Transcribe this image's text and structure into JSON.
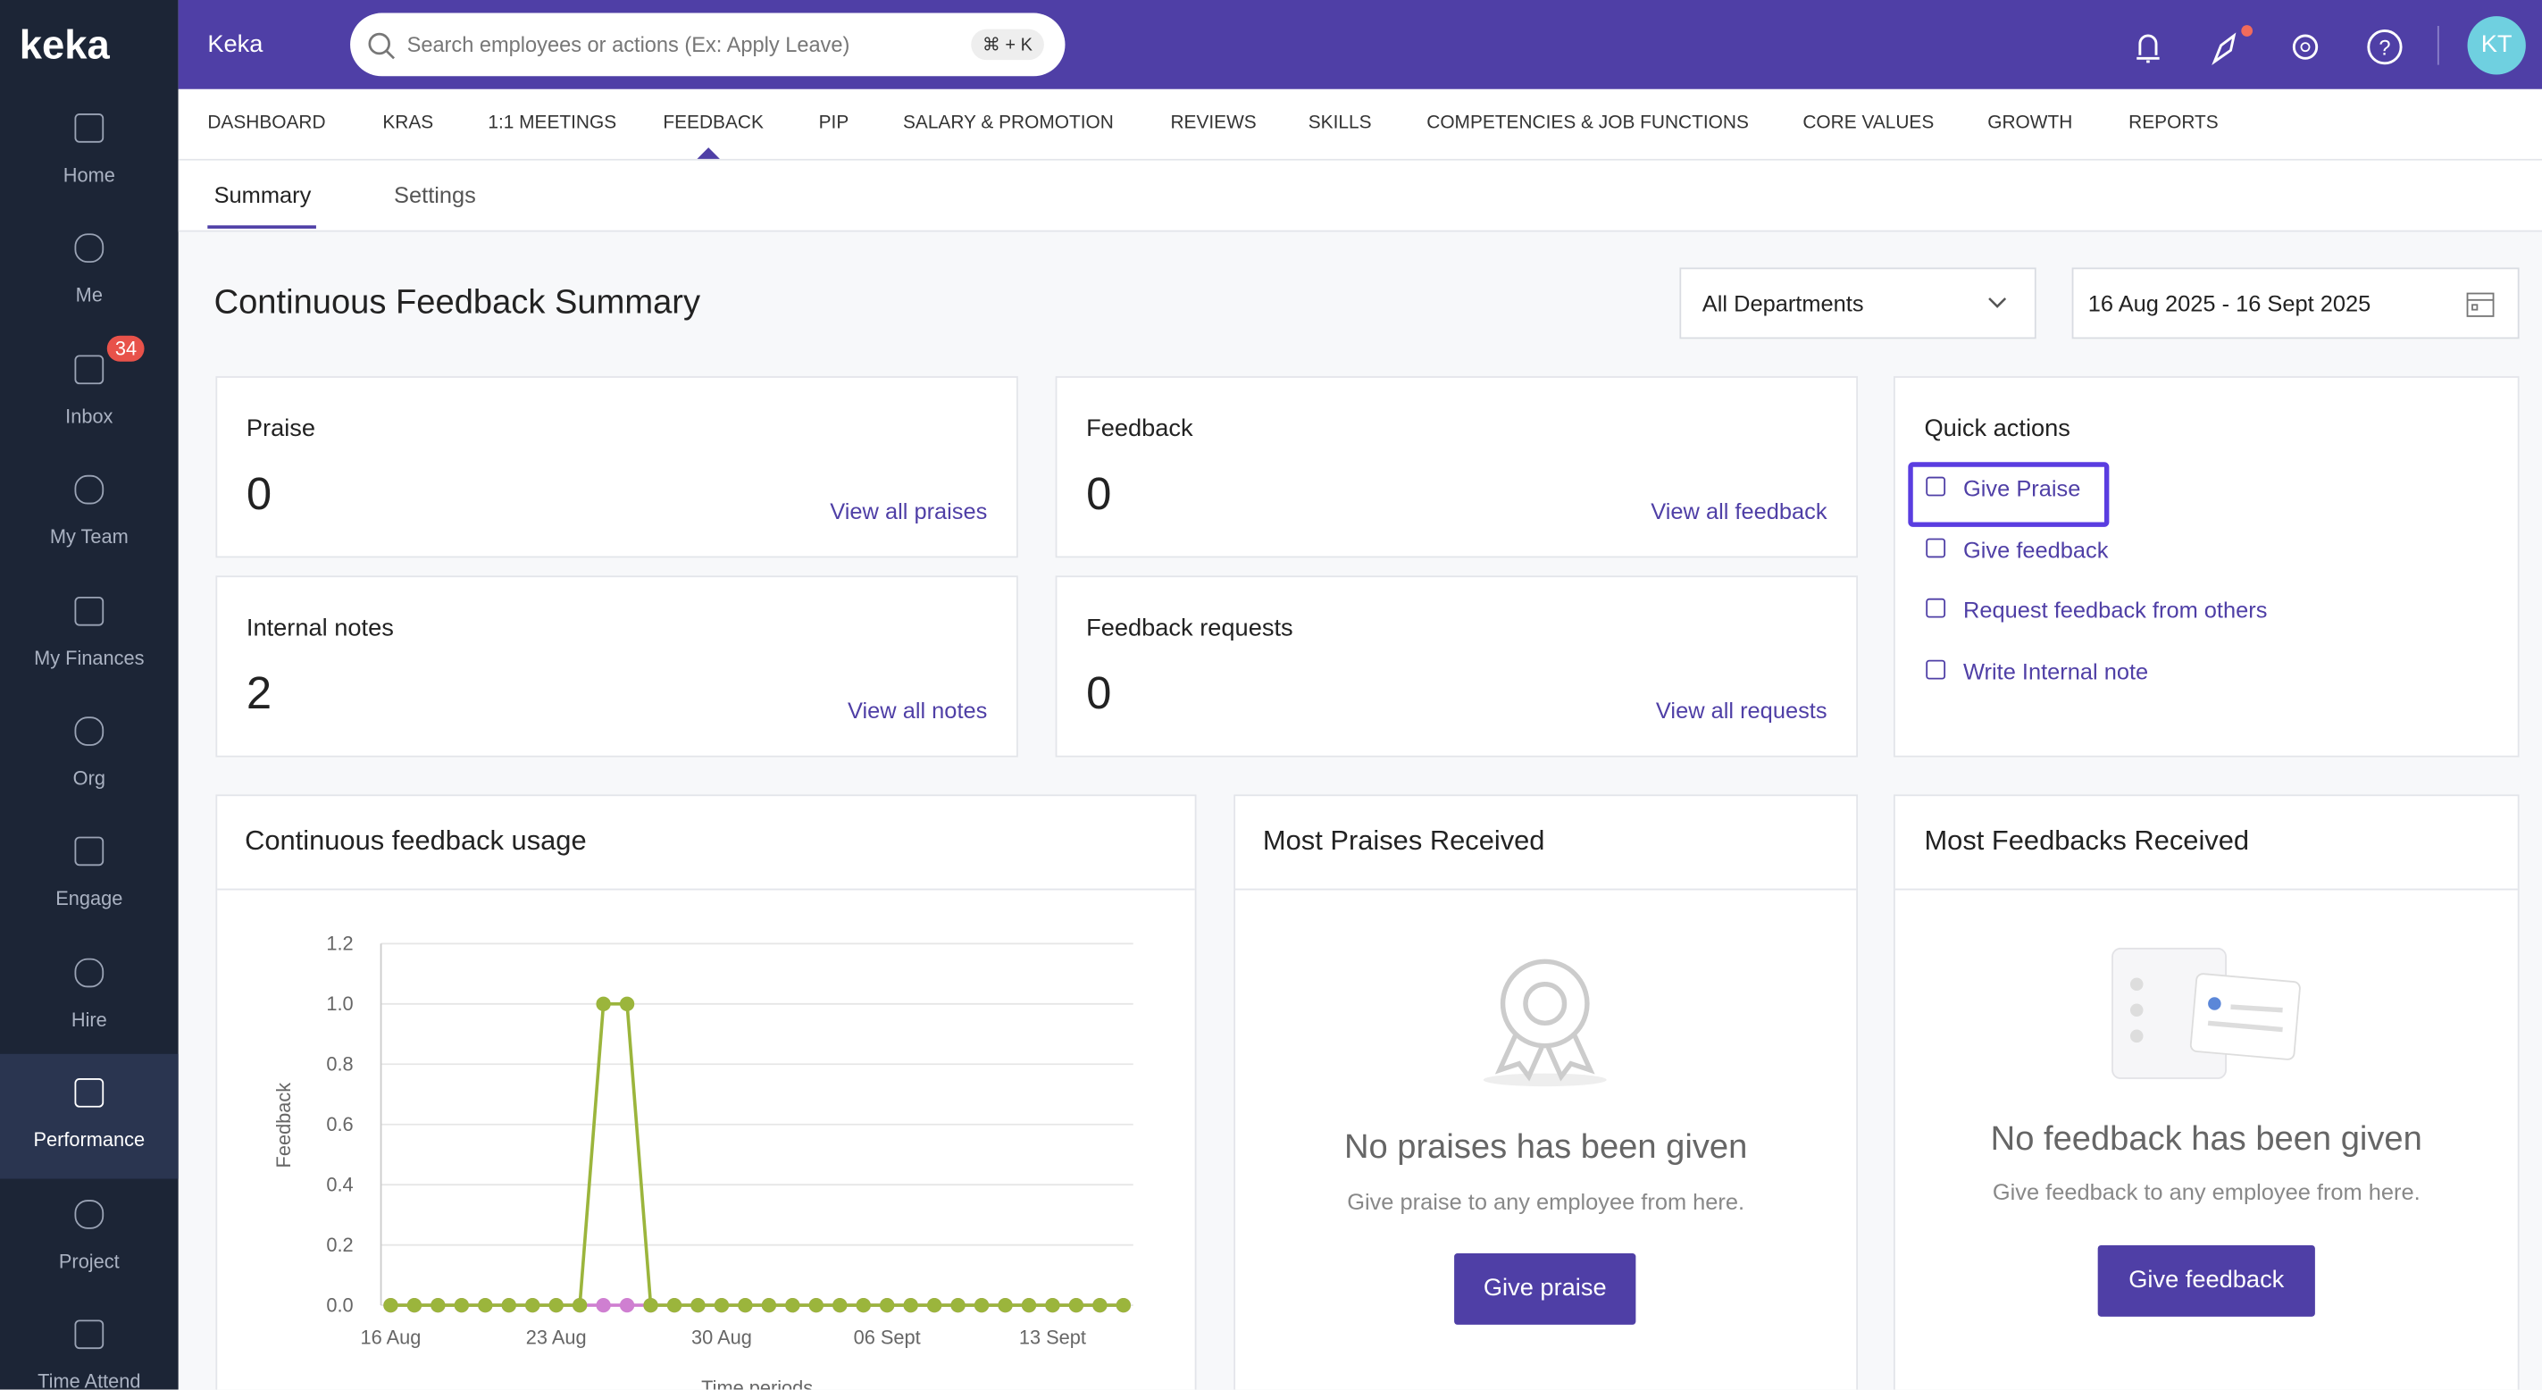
{
  "brand": "keka",
  "header": {
    "org": "Keka",
    "search_placeholder": "Search employees or actions (Ex: Apply Leave)",
    "shortcut": "⌘ + K",
    "avatar": "KT"
  },
  "sidebar": {
    "items": [
      "Home",
      "Me",
      "Inbox",
      "My Team",
      "My Finances",
      "Org",
      "Engage",
      "Hire",
      "Performance",
      "Project",
      "Time Attend"
    ],
    "inbox_badge": 34
  },
  "top_nav": [
    "DASHBOARD",
    "KRAS",
    "1:1 MEETINGS",
    "FEEDBACK",
    "PIP",
    "SALARY & PROMOTION",
    "REVIEWS",
    "SKILLS",
    "COMPETENCIES & JOB FUNCTIONS",
    "CORE VALUES",
    "GROWTH",
    "REPORTS"
  ],
  "tabs": [
    "Summary",
    "Settings"
  ],
  "page": {
    "title": "Continuous Feedback Summary",
    "department": "All Departments",
    "date_range": "16 Aug 2025 - 16 Sept 2025"
  },
  "cards": [
    {
      "title": "Praise",
      "count": 0,
      "link": "View all praises"
    },
    {
      "title": "Feedback",
      "count": 0,
      "link": "View all feedback"
    },
    {
      "title": "Internal notes",
      "count": 2,
      "link": "View all notes"
    },
    {
      "title": "Feedback requests",
      "count": 0,
      "link": "View all requests"
    }
  ],
  "quick_actions": {
    "title": "Quick actions",
    "items": [
      "Give Praise",
      "Give feedback",
      "Request feedback from others",
      "Write Internal note"
    ]
  },
  "chart_data": {
    "type": "line",
    "title": "Continuous feedback usage",
    "y_label": "Feedback",
    "x_label": "Time periods",
    "categories": [
      "16 Aug",
      null,
      null,
      null,
      null,
      null,
      null,
      "23 Aug",
      null,
      null,
      null,
      null,
      null,
      null,
      "30 Aug",
      null,
      null,
      null,
      null,
      null,
      null,
      "06 Sept",
      null,
      null,
      null,
      null,
      null,
      null,
      "13 Sept",
      null,
      null,
      null
    ],
    "series": [
      {
        "color": "#cf7fd1",
        "values": [
          0,
          0,
          0,
          0,
          0,
          0,
          0,
          0,
          0,
          0,
          0,
          0,
          0,
          0,
          0,
          0,
          0,
          0,
          0,
          0,
          0,
          0,
          0,
          0,
          0,
          0,
          0,
          0,
          0,
          0,
          0,
          0
        ]
      },
      {
        "color": "#9bb53c",
        "values": [
          0,
          0,
          0,
          0,
          0,
          0,
          0,
          0,
          0,
          1,
          1,
          0,
          0,
          0,
          0,
          0,
          0,
          0,
          0,
          0,
          0,
          0,
          0,
          0,
          0,
          0,
          0,
          0,
          0,
          0,
          0,
          0
        ]
      }
    ],
    "ylim": [
      0,
      1.2
    ],
    "yticks": [
      {
        "value": 0,
        "label": "0.0"
      },
      {
        "value": 0.2,
        "label": "0.2"
      },
      {
        "value": 0.4,
        "label": "0.4"
      },
      {
        "value": 0.6,
        "label": "0.6"
      },
      {
        "value": 0.8,
        "label": "0.8"
      },
      {
        "value": 1,
        "label": "1.0"
      },
      {
        "value": 1.2,
        "label": "1.2"
      }
    ],
    "grid": true
  },
  "most_praises": {
    "title": "Most Praises Received",
    "empty_title": "No praises has been given",
    "empty_text": "Give praise to any employee from here.",
    "button": "Give praise"
  },
  "most_feedbacks": {
    "title": "Most Feedbacks Received",
    "empty_title": "No feedback has been given",
    "empty_text": "Give feedback to any employee from here.",
    "button": "Give feedback"
  }
}
